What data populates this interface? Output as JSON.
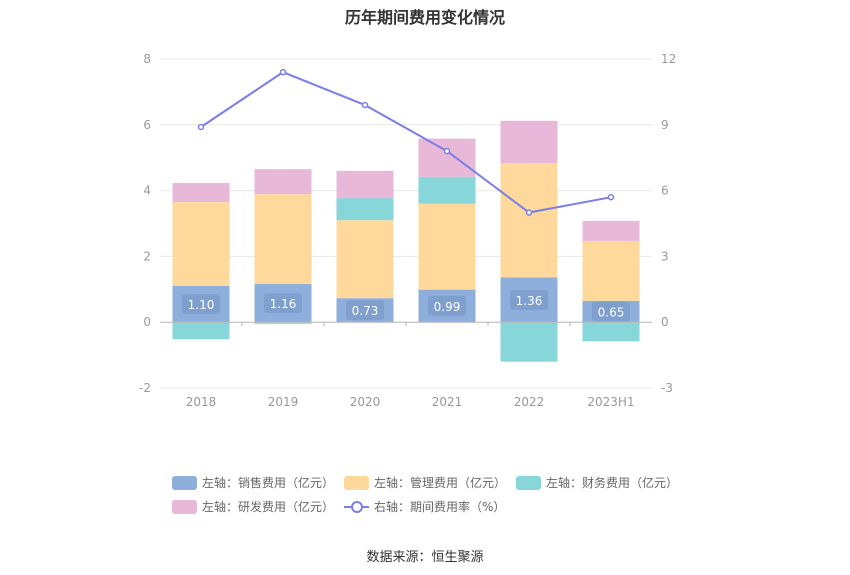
{
  "title": "历年期间费用变化情况",
  "source": "数据来源：恒生聚源",
  "colors": {
    "sales": "#8eaedb",
    "admin": "#ffd99b",
    "finance": "#86d6da",
    "rd": "#e8b8d8",
    "rate": "#7b7ee8",
    "grid": "#e8e8e8",
    "axis_text": "#999999"
  },
  "chart_data": {
    "type": "bar",
    "title": "历年期间费用变化情况",
    "categories": [
      "2018",
      "2019",
      "2020",
      "2021",
      "2022",
      "2023H1"
    ],
    "left_axis": {
      "min": -2,
      "max": 8,
      "ticks": [
        "-2",
        "0",
        "2",
        "4",
        "6",
        "8"
      ]
    },
    "right_axis": {
      "min": -3,
      "max": 12,
      "ticks": [
        "-3",
        "0",
        "3",
        "6",
        "9",
        "12"
      ]
    },
    "series": [
      {
        "name": "左轴：销售费用（亿元）",
        "key": "sales",
        "axis": "left",
        "type": "bar",
        "values": [
          1.1,
          1.16,
          0.73,
          0.99,
          1.36,
          0.65
        ],
        "labels": [
          "1.10",
          "1.16",
          "0.73",
          "0.99",
          "1.36",
          "0.65"
        ]
      },
      {
        "name": "左轴：管理费用（亿元）",
        "key": "admin",
        "axis": "left",
        "type": "bar",
        "values": [
          2.55,
          2.73,
          2.37,
          2.61,
          3.47,
          1.82
        ]
      },
      {
        "name": "左轴：财务费用（亿元）",
        "key": "finance",
        "axis": "left",
        "type": "bar",
        "values": [
          -0.52,
          -0.05,
          0.67,
          0.82,
          -1.2,
          -0.58
        ]
      },
      {
        "name": "左轴：研发费用（亿元）",
        "key": "rd",
        "axis": "left",
        "type": "bar",
        "values": [
          0.58,
          0.76,
          0.83,
          1.16,
          1.29,
          0.61
        ]
      },
      {
        "name": "右轴：期间费用率（%）",
        "key": "rate",
        "axis": "right",
        "type": "line",
        "values": [
          8.9,
          11.4,
          9.9,
          7.8,
          5.0,
          5.7
        ]
      }
    ]
  }
}
